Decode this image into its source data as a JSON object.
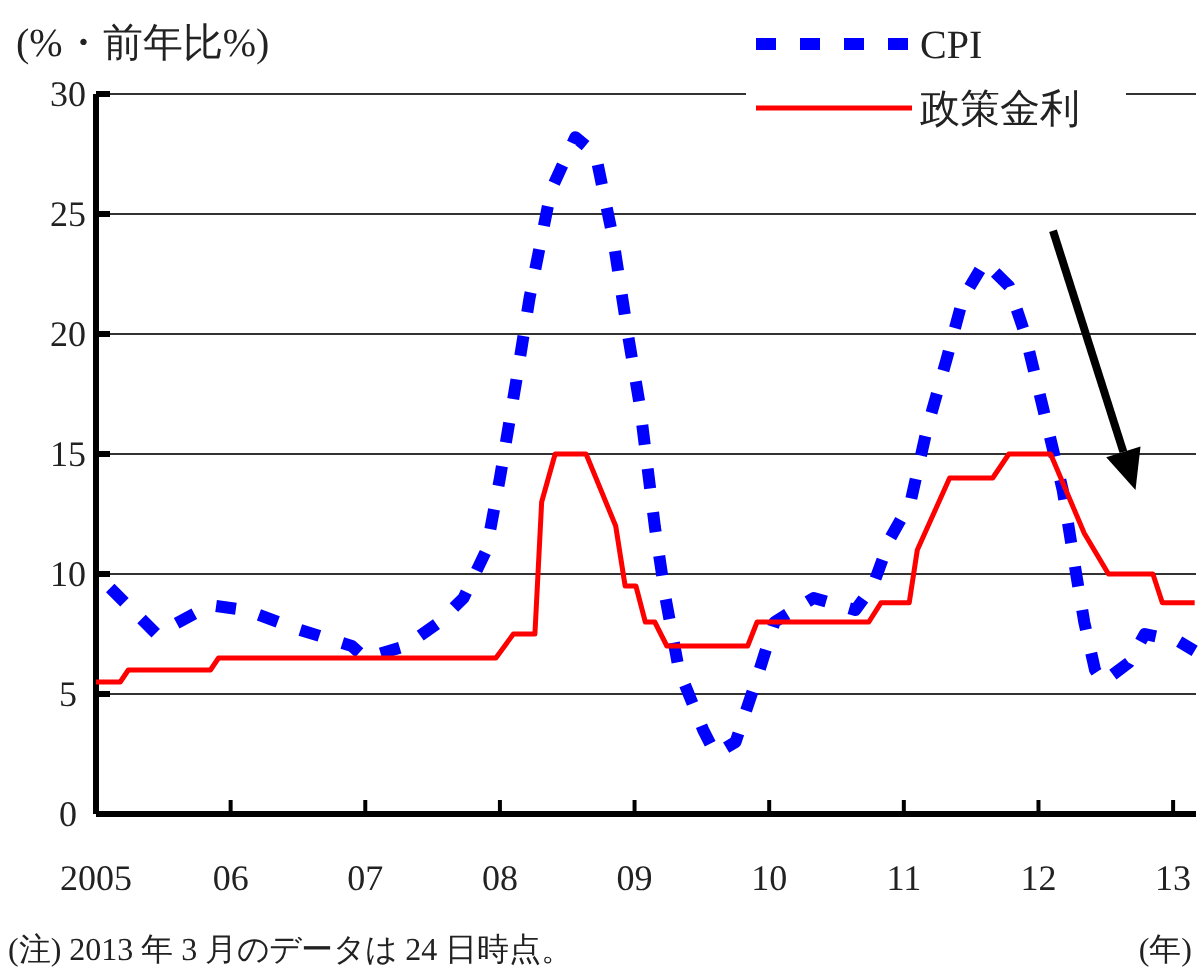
{
  "chart_data": {
    "type": "line",
    "ylabel": "(%・前年比%)",
    "xlabel": "(年)",
    "annotations": [
      "(注) 2013 年 3 月のデータは 24 日時点。"
    ],
    "xlim": [
      2005,
      2013.17
    ],
    "xticks": [
      {
        "value": 2005,
        "label": "2005"
      },
      {
        "value": 2006,
        "label": "06"
      },
      {
        "value": 2007,
        "label": "07"
      },
      {
        "value": 2008,
        "label": "08"
      },
      {
        "value": 2009,
        "label": "09"
      },
      {
        "value": 2010,
        "label": "10"
      },
      {
        "value": 2011,
        "label": "11"
      },
      {
        "value": 2012,
        "label": "12"
      },
      {
        "value": 2013,
        "label": "13"
      }
    ],
    "ylim": [
      0,
      30
    ],
    "yticks": [
      0,
      5,
      10,
      15,
      20,
      25,
      30
    ],
    "grid": "y",
    "legend": "top right",
    "series": [
      {
        "name": "CPI",
        "color": "#0000ff",
        "line_style": "dashed",
        "x": [
          2005.0,
          2005.45,
          2005.85,
          2006.11,
          2006.5,
          2006.9,
          2007.0,
          2007.3,
          2007.55,
          2007.73,
          2007.9,
          2008.0,
          2008.12,
          2008.22,
          2008.38,
          2008.56,
          2008.71,
          2008.84,
          2008.95,
          2009.04,
          2009.15,
          2009.23,
          2009.33,
          2009.51,
          2009.6,
          2009.75,
          2009.9,
          2010.04,
          2010.33,
          2010.64,
          2010.77,
          2010.9,
          2011.05,
          2011.17,
          2011.32,
          2011.44,
          2011.6,
          2011.78,
          2011.9,
          2012.03,
          2012.18,
          2012.28,
          2012.34,
          2012.42,
          2012.48,
          2012.67,
          2012.79,
          2013.04,
          2013.16
        ],
        "values": [
          10,
          7.5,
          8.7,
          8.5,
          7.7,
          7.0,
          6.5,
          7.0,
          8,
          9,
          11,
          14,
          18,
          21.5,
          26,
          28.2,
          27.5,
          24,
          20,
          17,
          12,
          9,
          6,
          3.5,
          2.5,
          3,
          5.5,
          8,
          9,
          8.5,
          9.5,
          11.5,
          13,
          16,
          19,
          21.5,
          23,
          22,
          20,
          17,
          13.5,
          10,
          8,
          6,
          5.5,
          6.3,
          7.5,
          7.2,
          6.8
        ]
      },
      {
        "name": "政策金利",
        "color": "#ff0000",
        "line_style": "solid",
        "x": [
          2005.0,
          2005.18,
          2005.24,
          2005.85,
          2005.91,
          2007.97,
          2008.1,
          2008.26,
          2008.31,
          2008.41,
          2008.64,
          2008.86,
          2008.93,
          2009.01,
          2009.08,
          2009.15,
          2009.24,
          2009.84,
          2009.91,
          2010.74,
          2010.83,
          2011.04,
          2011.1,
          2011.34,
          2011.66,
          2011.78,
          2012.09,
          2012.34,
          2012.52,
          2012.85,
          2012.92,
          2013.16
        ],
        "values": [
          5.5,
          5.5,
          6.0,
          6.0,
          6.5,
          6.5,
          7.5,
          7.5,
          13,
          15,
          15,
          12,
          9.5,
          9.5,
          8,
          8,
          7,
          7,
          8,
          8,
          8.8,
          8.8,
          11,
          14,
          14,
          15,
          15,
          11.7,
          10,
          10,
          8.8,
          8.8
        ]
      }
    ]
  }
}
